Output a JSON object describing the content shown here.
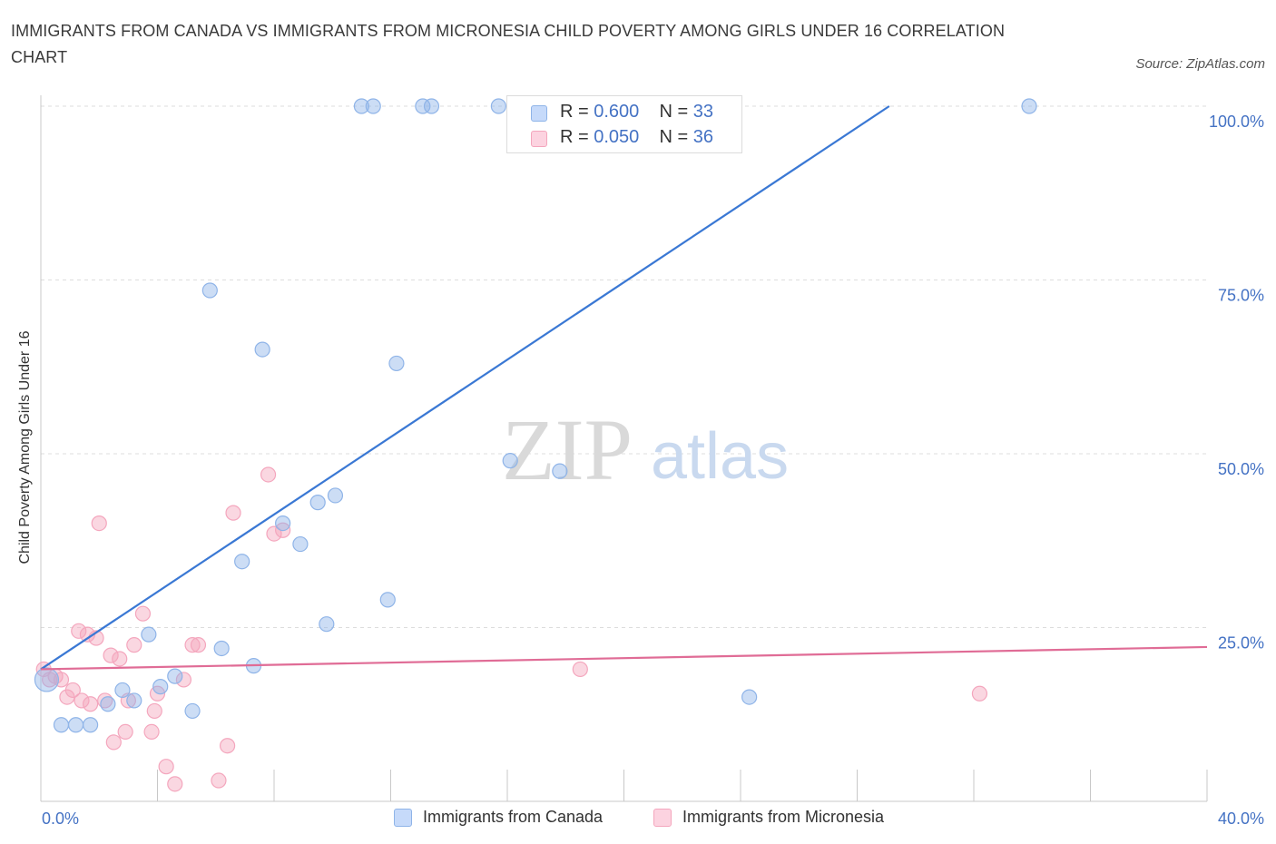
{
  "chart_data": {
    "type": "scatter",
    "title": "IMMIGRANTS FROM CANADA VS IMMIGRANTS FROM MICRONESIA CHILD POVERTY AMONG GIRLS UNDER 16 CORRELATION CHART",
    "source": "Source: ZipAtlas.com",
    "ylabel": "Child Poverty Among Girls Under 16",
    "xlim": [
      0,
      40
    ],
    "ylim": [
      0,
      100
    ],
    "x_tick_labels": [
      "0.0%",
      "40.0%"
    ],
    "y_tick_labels": [
      "100.0%",
      "75.0%",
      "50.0%",
      "25.0%"
    ],
    "y_tick_values": [
      100,
      75,
      50,
      25
    ],
    "watermark": {
      "zip": "ZIP",
      "atlas": "atlas"
    },
    "series": [
      {
        "name": "Immigrants from Canada",
        "color": "#8fb4e8",
        "line_color": "#3a78d4",
        "R": "0.600",
        "N": "33",
        "trend": {
          "x0": 0,
          "y0": 19,
          "x1": 29.1,
          "y1": 100
        },
        "points": [
          {
            "x": 0.2,
            "y": 17.5,
            "big": true
          },
          {
            "x": 0.7,
            "y": 11
          },
          {
            "x": 1.2,
            "y": 11
          },
          {
            "x": 1.7,
            "y": 11
          },
          {
            "x": 2.3,
            "y": 14
          },
          {
            "x": 2.8,
            "y": 16
          },
          {
            "x": 3.2,
            "y": 14.5
          },
          {
            "x": 3.7,
            "y": 24
          },
          {
            "x": 4.1,
            "y": 16.5
          },
          {
            "x": 4.6,
            "y": 18
          },
          {
            "x": 5.2,
            "y": 13
          },
          {
            "x": 5.8,
            "y": 73.5
          },
          {
            "x": 6.2,
            "y": 22
          },
          {
            "x": 7.3,
            "y": 19.5
          },
          {
            "x": 7.6,
            "y": 65
          },
          {
            "x": 6.9,
            "y": 34.5
          },
          {
            "x": 8.3,
            "y": 40
          },
          {
            "x": 8.9,
            "y": 37
          },
          {
            "x": 9.5,
            "y": 43
          },
          {
            "x": 9.8,
            "y": 25.5
          },
          {
            "x": 10.1,
            "y": 44
          },
          {
            "x": 11.0,
            "y": 100
          },
          {
            "x": 11.4,
            "y": 100
          },
          {
            "x": 11.9,
            "y": 29
          },
          {
            "x": 12.2,
            "y": 63
          },
          {
            "x": 13.1,
            "y": 100
          },
          {
            "x": 13.4,
            "y": 100
          },
          {
            "x": 15.7,
            "y": 100
          },
          {
            "x": 16.1,
            "y": 49
          },
          {
            "x": 17.3,
            "y": 100
          },
          {
            "x": 17.8,
            "y": 47.5
          },
          {
            "x": 24.3,
            "y": 15
          },
          {
            "x": 33.9,
            "y": 100
          }
        ]
      },
      {
        "name": "Immigrants from Micronesia",
        "color": "#f4a6bd",
        "line_color": "#e06c96",
        "R": "0.050",
        "N": "36",
        "trend": {
          "x0": 0,
          "y0": 19,
          "x1": 40,
          "y1": 22.2
        },
        "points": [
          {
            "x": 0.1,
            "y": 19
          },
          {
            "x": 0.3,
            "y": 17.5
          },
          {
            "x": 0.5,
            "y": 18
          },
          {
            "x": 0.7,
            "y": 17.5
          },
          {
            "x": 0.9,
            "y": 15
          },
          {
            "x": 1.1,
            "y": 16
          },
          {
            "x": 1.3,
            "y": 24.5
          },
          {
            "x": 1.4,
            "y": 14.5
          },
          {
            "x": 1.6,
            "y": 24
          },
          {
            "x": 1.7,
            "y": 14
          },
          {
            "x": 1.9,
            "y": 23.5
          },
          {
            "x": 2.0,
            "y": 40
          },
          {
            "x": 2.2,
            "y": 14.5
          },
          {
            "x": 2.4,
            "y": 21
          },
          {
            "x": 2.5,
            "y": 8.5
          },
          {
            "x": 2.7,
            "y": 20.5
          },
          {
            "x": 2.9,
            "y": 10
          },
          {
            "x": 3.0,
            "y": 14.5
          },
          {
            "x": 3.2,
            "y": 22.5
          },
          {
            "x": 3.5,
            "y": 27
          },
          {
            "x": 3.8,
            "y": 10
          },
          {
            "x": 3.9,
            "y": 13
          },
          {
            "x": 4.0,
            "y": 15.5
          },
          {
            "x": 4.3,
            "y": 5
          },
          {
            "x": 4.6,
            "y": 2.5
          },
          {
            "x": 4.9,
            "y": 17.5
          },
          {
            "x": 5.2,
            "y": 22.5
          },
          {
            "x": 5.4,
            "y": 22.5
          },
          {
            "x": 6.1,
            "y": 3
          },
          {
            "x": 6.4,
            "y": 8
          },
          {
            "x": 6.6,
            "y": 41.5
          },
          {
            "x": 7.8,
            "y": 47
          },
          {
            "x": 8.0,
            "y": 38.5
          },
          {
            "x": 8.3,
            "y": 39
          },
          {
            "x": 18.5,
            "y": 19
          },
          {
            "x": 32.2,
            "y": 15.5
          }
        ]
      }
    ]
  },
  "legend_top": {
    "r_label": "R = ",
    "n_label": "N = "
  }
}
